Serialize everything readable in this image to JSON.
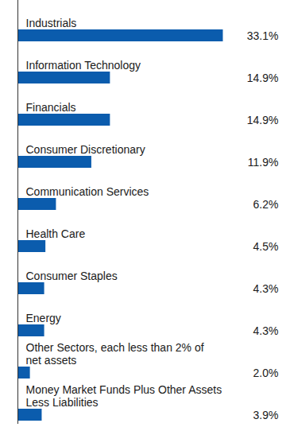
{
  "chart_data": {
    "type": "bar",
    "orientation": "horizontal",
    "categories": [
      "Industrials",
      "Information Technology",
      "Financials",
      "Consumer Discretionary",
      "Communication Services",
      "Health Care",
      "Consumer Staples",
      "Energy",
      "Other Sectors, each less than 2% of net assets",
      "Money Market Funds Plus Other Assets Less Liabilities"
    ],
    "values": [
      33.1,
      14.9,
      14.9,
      11.9,
      6.2,
      4.5,
      4.3,
      4.3,
      2.0,
      3.9
    ],
    "value_labels": [
      "33.1%",
      "14.9%",
      "14.9%",
      "11.9%",
      "6.2%",
      "4.5%",
      "4.3%",
      "4.3%",
      "2.0%",
      "3.9%"
    ],
    "color": "#0b5cad",
    "xlim": [
      0,
      42
    ],
    "grid": false,
    "tick_labels": false,
    "data_labels": true
  }
}
